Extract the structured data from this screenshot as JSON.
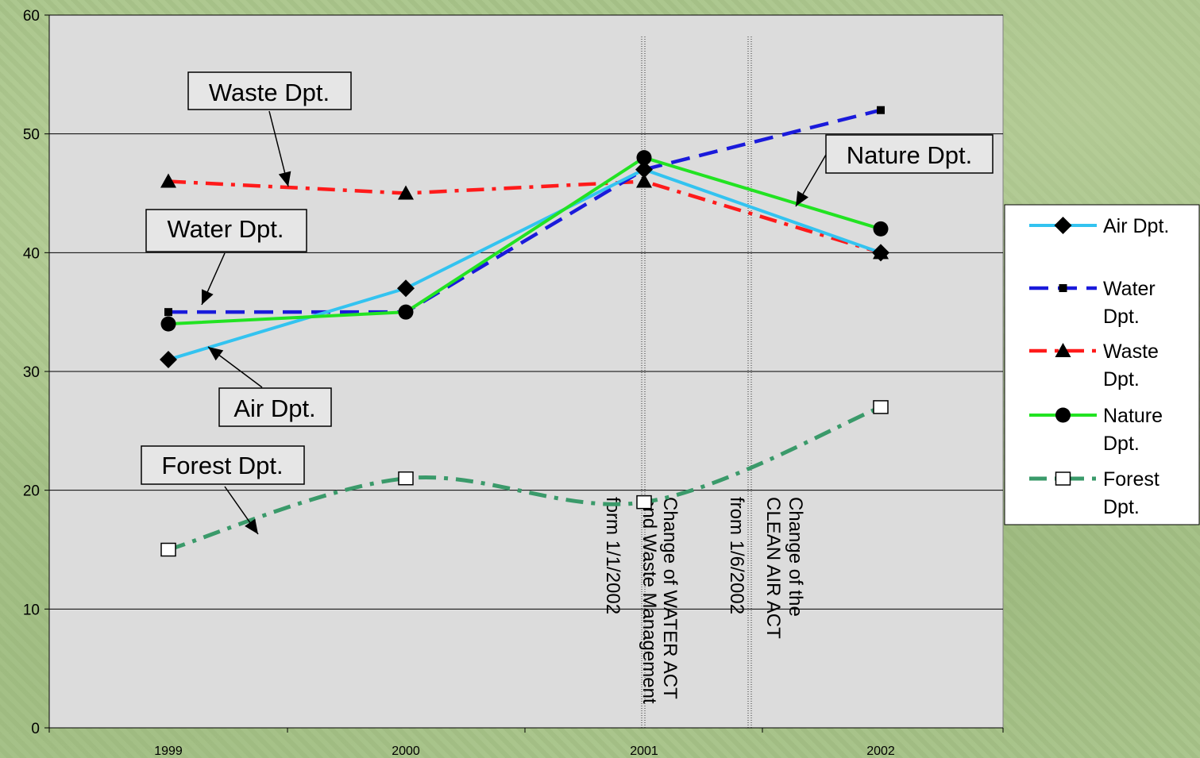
{
  "chart_data": {
    "type": "line",
    "title": "",
    "xlabel": "",
    "ylabel": "",
    "categories": [
      "1999",
      "2000",
      "2001",
      "2002"
    ],
    "ylim": [
      0,
      60
    ],
    "yticks": [
      0,
      10,
      20,
      30,
      40,
      50,
      60
    ],
    "grid": "horizontal",
    "legend_position": "right",
    "series": [
      {
        "name": "Air Dpt.",
        "values": [
          31,
          37,
          47,
          40
        ],
        "color": "#33c3f0",
        "dash": "solid",
        "marker": "diamond"
      },
      {
        "name": "Water Dpt.",
        "values": [
          35,
          35,
          47,
          52
        ],
        "color": "#1a1adb",
        "dash": "dash",
        "marker": "square"
      },
      {
        "name": "Waste Dpt.",
        "values": [
          46,
          45,
          46,
          40
        ],
        "color": "#ff1a1a",
        "dash": "dashdot",
        "marker": "triangle"
      },
      {
        "name": "Nature Dpt.",
        "values": [
          34,
          35,
          48,
          42
        ],
        "color": "#22e322",
        "dash": "solid",
        "marker": "circle"
      },
      {
        "name": "Forest Dpt.",
        "values": [
          15,
          21,
          19,
          27
        ],
        "color": "#3a9a6a",
        "dash": "dashdot",
        "marker": "open-square"
      }
    ],
    "legend_entries": [
      [
        "Air Dpt."
      ],
      [
        "Water",
        "Dpt."
      ],
      [
        "Waste",
        "Dpt."
      ],
      [
        "Nature",
        "Dpt."
      ],
      [
        "Forest",
        "Dpt."
      ]
    ],
    "annotations": [
      {
        "id": "waste",
        "text": "Waste Dpt."
      },
      {
        "id": "water",
        "text": "Water Dpt."
      },
      {
        "id": "air",
        "text": "Air Dpt."
      },
      {
        "id": "forest",
        "text": "Forest Dpt."
      },
      {
        "id": "nature",
        "text": "Nature Dpt."
      }
    ],
    "event_lines": [
      {
        "id": "water-act",
        "lines": [
          "Change of WATER ACT",
          "and Waste Management",
          "form 1/1/2002"
        ]
      },
      {
        "id": "clean-air-act",
        "lines": [
          "Change of the",
          "CLEAN AIR ACT",
          "from 1/6/2002"
        ]
      }
    ]
  }
}
